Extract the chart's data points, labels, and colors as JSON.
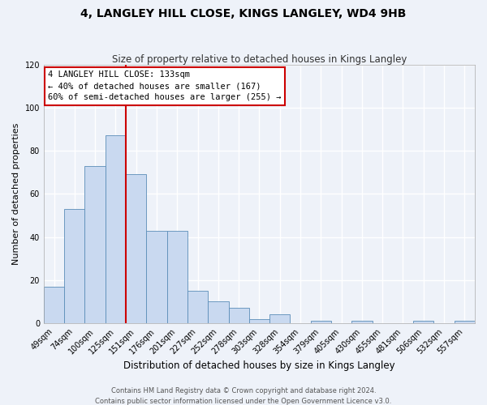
{
  "title": "4, LANGLEY HILL CLOSE, KINGS LANGLEY, WD4 9HB",
  "subtitle": "Size of property relative to detached houses in Kings Langley",
  "xlabel": "Distribution of detached houses by size in Kings Langley",
  "ylabel": "Number of detached properties",
  "bar_labels": [
    "49sqm",
    "74sqm",
    "100sqm",
    "125sqm",
    "151sqm",
    "176sqm",
    "201sqm",
    "227sqm",
    "252sqm",
    "278sqm",
    "303sqm",
    "328sqm",
    "354sqm",
    "379sqm",
    "405sqm",
    "430sqm",
    "455sqm",
    "481sqm",
    "506sqm",
    "532sqm",
    "557sqm"
  ],
  "bar_values": [
    17,
    53,
    73,
    87,
    69,
    43,
    43,
    15,
    10,
    7,
    2,
    4,
    0,
    1,
    0,
    1,
    0,
    0,
    1,
    0,
    1
  ],
  "bar_color": "#c9d9f0",
  "bar_edge_color": "#5b8db8",
  "ylim": [
    0,
    120
  ],
  "yticks": [
    0,
    20,
    40,
    60,
    80,
    100,
    120
  ],
  "vline_color": "#cc0000",
  "annotation_title": "4 LANGLEY HILL CLOSE: 133sqm",
  "annotation_line1": "← 40% of detached houses are smaller (167)",
  "annotation_line2": "60% of semi-detached houses are larger (255) →",
  "annotation_box_color": "#ffffff",
  "annotation_box_edge_color": "#cc0000",
  "footer1": "Contains HM Land Registry data © Crown copyright and database right 2024.",
  "footer2": "Contains public sector information licensed under the Open Government Licence v3.0.",
  "background_color": "#eef2f9",
  "grid_color": "#ffffff",
  "title_fontsize": 10,
  "subtitle_fontsize": 8.5,
  "xlabel_fontsize": 8.5,
  "ylabel_fontsize": 8,
  "tick_fontsize": 7,
  "footer_fontsize": 6,
  "annot_fontsize": 7.5
}
